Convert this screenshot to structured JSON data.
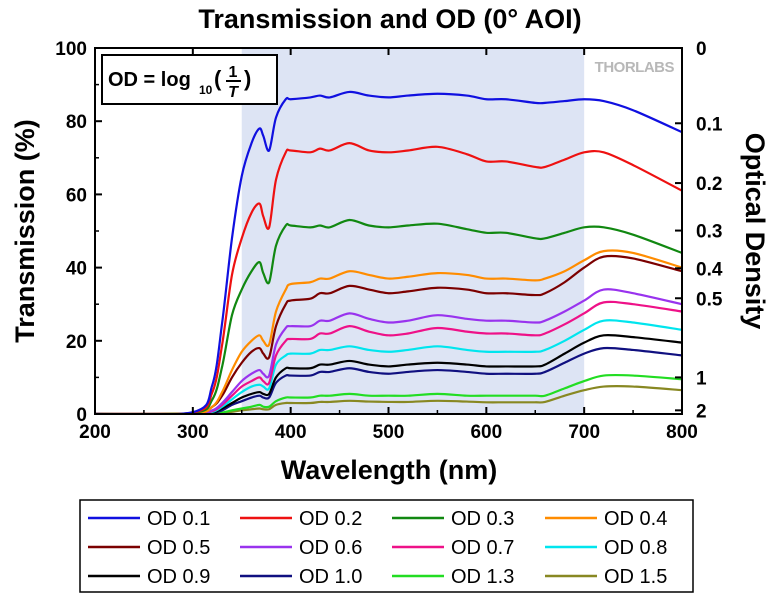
{
  "chart_data": {
    "type": "line",
    "title": "Transmission and OD (0° AOI)",
    "xlabel": "Wavelength (nm)",
    "ylabel": "Transmission (%)",
    "y2label": "Optical Density",
    "xlim": [
      200,
      800
    ],
    "ylim": [
      0,
      100
    ],
    "x_ticks": [
      200,
      300,
      400,
      500,
      600,
      700,
      800
    ],
    "y_ticks": [
      0,
      20,
      40,
      60,
      80,
      100
    ],
    "y2_ticks": [
      {
        "label": "0",
        "od": 0
      },
      {
        "label": "0.1",
        "od": 0.1
      },
      {
        "label": "0.2",
        "od": 0.2
      },
      {
        "label": "0.3",
        "od": 0.3
      },
      {
        "label": "0.4",
        "od": 0.4
      },
      {
        "label": "0.5",
        "od": 0.5
      },
      {
        "label": "1",
        "od": 1
      },
      {
        "label": "2",
        "od": 2
      }
    ],
    "shaded_band": [
      350,
      700
    ],
    "shaded_color": "#dde4f4",
    "formula": {
      "lhs": "OD = log",
      "sub": "10",
      "num": "1",
      "den": "T"
    },
    "logo": "THORLABS",
    "grid": false,
    "legend_position": "bottom",
    "x": [
      200,
      300,
      320,
      330,
      340,
      350,
      360,
      368,
      372,
      378,
      385,
      395,
      400,
      420,
      430,
      440,
      460,
      480,
      500,
      520,
      550,
      580,
      600,
      620,
      650,
      660,
      680,
      700,
      720,
      750,
      800
    ],
    "series": [
      {
        "name": "OD 0.1",
        "color": "#1010e0",
        "values": [
          0,
          0.5,
          8,
          25,
          48,
          65,
          74,
          78,
          76,
          72,
          81,
          86,
          86,
          86.5,
          87,
          86.5,
          88,
          87,
          86.5,
          87,
          87.5,
          87,
          86,
          86,
          85,
          85,
          85.5,
          86,
          85.5,
          83,
          77
        ]
      },
      {
        "name": "OD 0.2",
        "color": "#ee1111",
        "values": [
          0,
          0.4,
          6,
          19,
          38,
          48,
          55,
          57.5,
          54,
          51,
          64,
          71.5,
          72,
          71.5,
          72.5,
          72,
          74,
          72,
          71.5,
          72,
          73,
          71,
          69,
          69,
          67.5,
          67.5,
          69.5,
          71.5,
          71.5,
          68,
          61
        ]
      },
      {
        "name": "OD 0.3",
        "color": "#118811",
        "values": [
          0,
          0.3,
          4,
          13,
          27,
          34,
          39,
          41.5,
          38.5,
          36,
          46,
          51.5,
          51.5,
          51,
          51.5,
          51,
          53,
          51.5,
          51,
          51.5,
          52,
          50.5,
          49.5,
          49.5,
          48,
          48,
          49.5,
          51,
          51,
          49,
          44
        ]
      },
      {
        "name": "OD 0.4",
        "color": "#ff8c00",
        "values": [
          0,
          0.2,
          2,
          6,
          12,
          17,
          20,
          21.5,
          20,
          19,
          28,
          34,
          35.5,
          36,
          37,
          37,
          39,
          38,
          37,
          37.5,
          38.5,
          38,
          37,
          37,
          36.5,
          37,
          39,
          42,
          44.5,
          44,
          40
        ]
      },
      {
        "name": "OD 0.5",
        "color": "#7b0000",
        "values": [
          0,
          0.2,
          2,
          5,
          10,
          14,
          17,
          18,
          16.5,
          15.5,
          24,
          30,
          31,
          31.5,
          33,
          33,
          35,
          34,
          33,
          33.5,
          34.5,
          34,
          33,
          33,
          32.5,
          33,
          36,
          40,
          43,
          42.5,
          39
        ]
      },
      {
        "name": "OD 0.6",
        "color": "#9933ee",
        "values": [
          0,
          0.1,
          1,
          3,
          6,
          9,
          11,
          12,
          11,
          10.5,
          19,
          23.5,
          24,
          24,
          25.5,
          25.5,
          27.5,
          26,
          25,
          25.5,
          27,
          26,
          25.5,
          25.5,
          25,
          25.5,
          28,
          31,
          34,
          33,
          30
        ]
      },
      {
        "name": "OD 0.7",
        "color": "#ee1188",
        "values": [
          0,
          0.1,
          0.8,
          2.5,
          5,
          7.5,
          9,
          10,
          9,
          8.5,
          16,
          20,
          20.5,
          20.5,
          22,
          22,
          24,
          22.5,
          21.5,
          22,
          23.5,
          22.5,
          22,
          22,
          21.5,
          22,
          24.5,
          27.5,
          30.5,
          30,
          28
        ]
      },
      {
        "name": "OD 0.8",
        "color": "#00e5ee",
        "values": [
          0,
          0.1,
          0.6,
          2,
          4,
          6,
          7.5,
          8,
          7.5,
          7,
          13.5,
          16,
          16.5,
          16.5,
          17.5,
          17.5,
          18.5,
          17.5,
          17,
          17.5,
          18.5,
          17.5,
          17,
          17,
          17,
          17.5,
          20,
          23,
          25.5,
          25,
          23
        ]
      },
      {
        "name": "OD 0.9",
        "color": "#000000",
        "values": [
          0,
          0,
          0.4,
          1.5,
          3,
          4.5,
          5.5,
          6,
          5.5,
          5.5,
          10,
          12.5,
          12.5,
          12.5,
          13.5,
          13.5,
          14.5,
          13.5,
          13,
          13.5,
          14,
          13.5,
          13,
          13,
          13,
          13.5,
          16.5,
          19.5,
          21.5,
          21,
          19.5
        ]
      },
      {
        "name": "OD 1.0",
        "color": "#101080",
        "values": [
          0,
          0,
          0.3,
          1,
          2.5,
          3.5,
          4.5,
          5,
          4.5,
          4.5,
          8.5,
          10.5,
          10.5,
          10.5,
          11.5,
          11.5,
          12.5,
          11.5,
          11,
          11.5,
          12,
          11.5,
          11,
          11,
          11,
          11.5,
          14,
          16.5,
          18,
          17.5,
          16
        ]
      },
      {
        "name": "OD 1.3",
        "color": "#22dd22",
        "values": [
          0,
          0,
          0.1,
          0.4,
          1,
          1.5,
          2,
          2.5,
          2,
          2,
          3.5,
          4.5,
          4.5,
          4.5,
          5,
          5,
          5.5,
          5,
          5,
          5,
          5.5,
          5,
          5,
          5,
          5,
          5,
          7,
          9,
          10.5,
          10.5,
          9.5
        ]
      },
      {
        "name": "OD 1.5",
        "color": "#888822",
        "values": [
          0,
          0,
          0.1,
          0.3,
          0.6,
          1,
          1.3,
          1.5,
          1.3,
          1.3,
          2.5,
          3,
          3,
          3,
          3.3,
          3.3,
          3.6,
          3.4,
          3.3,
          3.3,
          3.6,
          3.4,
          3.2,
          3.2,
          3.2,
          3.3,
          5,
          6.5,
          7.5,
          7.5,
          6.5
        ]
      }
    ]
  }
}
